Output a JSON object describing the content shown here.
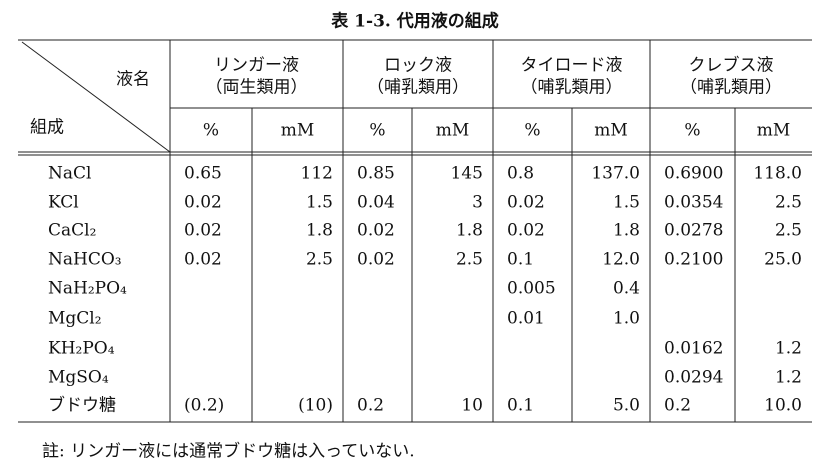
{
  "title": "表 1-3. 代用液の組成",
  "table": {
    "corner_top": "液名",
    "corner_bottom": "組成",
    "groups": [
      {
        "name": "リンガー液",
        "note": "（両生類用）"
      },
      {
        "name": "ロック液",
        "note": "（哺乳類用）"
      },
      {
        "name": "タイロード液",
        "note": "（哺乳類用）"
      },
      {
        "name": "クレブス液",
        "note": "（哺乳類用）"
      }
    ],
    "subheaders": [
      "%",
      "mM",
      "%",
      "mM",
      "%",
      "mM",
      "%",
      "mM"
    ],
    "rows": [
      {
        "label": "NaCl",
        "cells": [
          "0.65",
          "112",
          "0.85",
          "145",
          "0.8",
          "137.0",
          "0.6900",
          "118.0"
        ]
      },
      {
        "label": "KCl",
        "cells": [
          "0.02",
          "1.5",
          "0.04",
          "3",
          "0.02",
          "1.5",
          "0.0354",
          "2.5"
        ]
      },
      {
        "label": "CaCl₂",
        "cells": [
          "0.02",
          "1.8",
          "0.02",
          "1.8",
          "0.02",
          "1.8",
          "0.0278",
          "2.5"
        ]
      },
      {
        "label": "NaHCO₃",
        "cells": [
          "0.02",
          "2.5",
          "0.02",
          "2.5",
          "0.1",
          "12.0",
          "0.2100",
          "25.0"
        ]
      },
      {
        "label": "NaH₂PO₄",
        "cells": [
          null,
          null,
          null,
          null,
          "0.005",
          "0.4",
          null,
          null
        ]
      },
      {
        "label": "MgCl₂",
        "cells": [
          null,
          null,
          null,
          null,
          "0.01",
          "1.0",
          null,
          null
        ]
      },
      {
        "label": "KH₂PO₄",
        "cells": [
          null,
          null,
          null,
          null,
          null,
          null,
          "0.0162",
          "1.2"
        ]
      },
      {
        "label": "MgSO₄",
        "cells": [
          null,
          null,
          null,
          null,
          null,
          null,
          "0.0294",
          "1.2"
        ]
      },
      {
        "label": "ブドウ糖",
        "cells": [
          "(0.2)",
          "(10)",
          "0.2",
          "10",
          "0.1",
          "5.0",
          "0.2",
          "10.0"
        ]
      }
    ]
  },
  "footnote": "註: リンガー液には通常ブドウ糖は入っていない."
}
